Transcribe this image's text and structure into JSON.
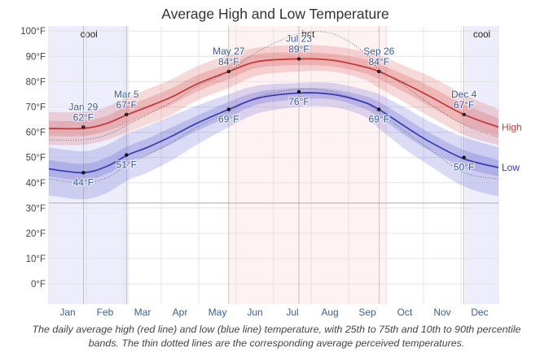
{
  "chart_data": {
    "type": "line",
    "title": "Average High and Low Temperature",
    "ylim": [
      -8,
      102
    ],
    "y_ticks": [
      0,
      10,
      20,
      30,
      40,
      50,
      60,
      70,
      80,
      90,
      100
    ],
    "y_tick_labels": [
      "0°F",
      "10°F",
      "20°F",
      "30°F",
      "40°F",
      "50°F",
      "60°F",
      "70°F",
      "80°F",
      "90°F",
      "100°F"
    ],
    "x_tick_labels": [
      "Jan",
      "Feb",
      "Mar",
      "Apr",
      "May",
      "Jun",
      "Jul",
      "Aug",
      "Sep",
      "Oct",
      "Nov",
      "Dec"
    ],
    "freezing_line": 32,
    "grid": true,
    "seasons": [
      {
        "label": "cool",
        "start_day": 0,
        "end_day": 65,
        "color": "#7777dd"
      },
      {
        "label": "hot",
        "start_day": 146,
        "end_day": 275,
        "color": "#ff9999"
      },
      {
        "label": "cool",
        "start_day": 338,
        "end_day": 365,
        "color": "#7777dd"
      }
    ],
    "x_days": [
      0,
      28,
      47,
      64,
      80,
      100,
      120,
      146,
      170,
      203,
      230,
      255,
      268,
      290,
      310,
      337,
      365
    ],
    "series": [
      {
        "name": "High",
        "color": "#c33b3b",
        "band_color": "#d65555",
        "values": [
          61.5,
          61.5,
          63.5,
          67,
          70,
          74,
          79,
          84,
          88,
          89,
          88.5,
          86,
          84,
          79,
          74,
          67,
          62
        ],
        "p25": [
          58.5,
          58.5,
          60.5,
          63.5,
          67,
          71,
          76,
          81,
          85.5,
          86.5,
          86,
          83.5,
          81,
          75.5,
          70,
          63,
          58.5
        ],
        "p75": [
          64.5,
          64.5,
          66.5,
          70.5,
          73.5,
          77.5,
          82.5,
          87,
          91,
          91.5,
          91,
          89,
          87,
          82.5,
          78,
          71,
          65.5
        ],
        "p10": [
          55,
          55,
          57,
          60,
          63,
          67,
          72.5,
          77.5,
          82.5,
          84,
          84,
          81,
          77.5,
          71.5,
          66,
          59,
          55
        ],
        "p90": [
          68,
          68,
          70,
          74,
          77,
          81,
          86,
          90.5,
          93.5,
          94.5,
          94,
          92,
          90.5,
          86,
          82,
          75,
          69
        ],
        "perceived": [
          57,
          57,
          59,
          63,
          67,
          72,
          78,
          84,
          92,
          99,
          99,
          92,
          85,
          78,
          71,
          63,
          58
        ]
      },
      {
        "name": "Low",
        "color": "#3d3db3",
        "band_color": "#5a5ad0",
        "values": [
          45.5,
          44,
          46.5,
          51,
          54,
          58.5,
          63.5,
          69,
          73.5,
          75.5,
          75,
          72,
          69,
          62,
          56,
          49.5,
          46
        ],
        "p25": [
          42.5,
          41,
          43.5,
          48,
          51,
          55.5,
          60.5,
          66,
          71,
          73,
          73,
          69.5,
          66,
          58.5,
          52.5,
          46,
          42.5
        ],
        "p75": [
          49,
          47.5,
          50,
          54.5,
          57.5,
          62,
          66.5,
          72,
          76,
          77.5,
          77,
          74.5,
          72,
          65.5,
          59.5,
          53,
          49
        ],
        "p10": [
          35,
          33.5,
          36,
          41,
          44,
          49,
          55,
          62,
          67.5,
          70,
          70,
          66.5,
          61.5,
          53,
          46.5,
          38.5,
          34.5
        ],
        "p90": [
          54,
          52.5,
          55,
          59.5,
          62.5,
          66.5,
          70.5,
          75,
          78.5,
          79.5,
          79.5,
          77,
          75,
          69.5,
          64,
          58,
          54
        ],
        "perceived": [
          41.5,
          40,
          42,
          47,
          51,
          56,
          62,
          68,
          74,
          77,
          76,
          72,
          68,
          60,
          53,
          44,
          41.5
        ]
      }
    ],
    "annotations": [
      {
        "series": "High",
        "day": 28,
        "value": 62,
        "date": "Jan 29",
        "label": "62°F",
        "pos": "above"
      },
      {
        "series": "High",
        "day": 63,
        "value": 67,
        "date": "Mar 5",
        "label": "67°F",
        "pos": "above"
      },
      {
        "series": "High",
        "day": 146,
        "value": 84,
        "date": "May 27",
        "label": "84°F",
        "pos": "above"
      },
      {
        "series": "High",
        "day": 203,
        "value": 89,
        "date": "Jul 23",
        "label": "89°F",
        "pos": "above"
      },
      {
        "series": "High",
        "day": 268,
        "value": 84,
        "date": "Sep 26",
        "label": "84°F",
        "pos": "above"
      },
      {
        "series": "High",
        "day": 337,
        "value": 67,
        "date": "Dec 4",
        "label": "67°F",
        "pos": "above"
      },
      {
        "series": "Low",
        "day": 28,
        "value": 44,
        "label": "44°F",
        "pos": "below"
      },
      {
        "series": "Low",
        "day": 63,
        "value": 51,
        "label": "51°F",
        "pos": "below"
      },
      {
        "series": "Low",
        "day": 146,
        "value": 69,
        "label": "69°F",
        "pos": "below"
      },
      {
        "series": "Low",
        "day": 203,
        "value": 76,
        "label": "76°F",
        "pos": "below"
      },
      {
        "series": "Low",
        "day": 268,
        "value": 69,
        "label": "69°F",
        "pos": "below"
      },
      {
        "series": "Low",
        "day": 337,
        "value": 50,
        "label": "50°F",
        "pos": "below"
      }
    ]
  },
  "caption": {
    "line1": "The daily average high (red line) and low (blue line) temperature, with 25th to 75th and 10th to 90th percentile",
    "line2": "bands. The thin dotted lines are the corresponding average perceived temperatures."
  }
}
